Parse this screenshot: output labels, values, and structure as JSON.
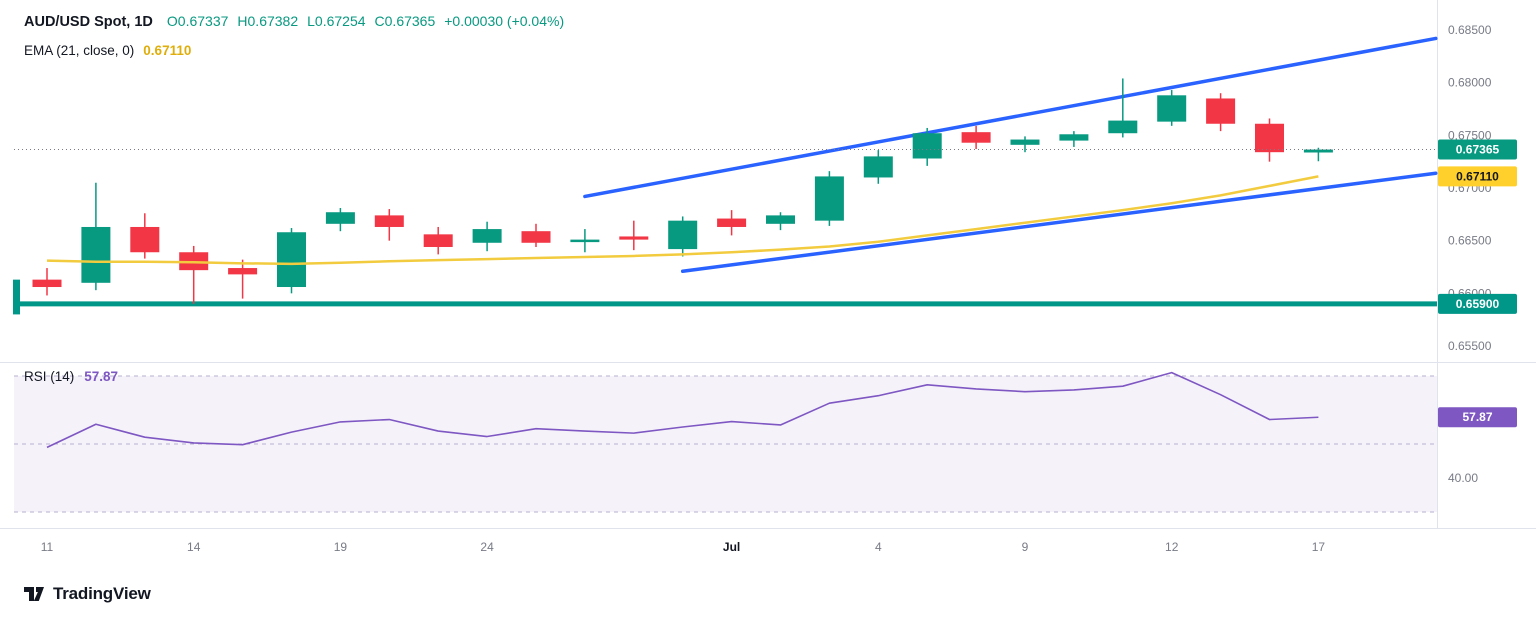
{
  "header": {
    "symbol_title": "AUD/USD Spot, 1D",
    "ohlc_segments": [
      "O0.67337",
      "H0.67382",
      "L0.67254",
      "C0.67365",
      "+0.00030 (+0.04%)"
    ],
    "ema": {
      "label": "EMA (21, close, 0)",
      "value": "0.67110"
    },
    "rsi": {
      "label": "RSI (14)",
      "value": "57.87"
    }
  },
  "footer": {
    "brand": "TradingView"
  },
  "colors": {
    "up": "#089981",
    "down": "#F23645",
    "ema": "#F2CC3E",
    "ema_badge_bg": "#FFD02C",
    "ema_badge_text": "#131722",
    "trendline": "#2962FF",
    "support": "#009688",
    "current_badge": "#089981",
    "rsi": "#7E57C2",
    "rsi_band_fill": "rgba(126,87,194,0.08)",
    "rsi_level": "#B7B0CE",
    "axis_text": "#787B86",
    "legend_text": "#131722",
    "divider": "#E0E3EB",
    "price_line": "#787B86"
  },
  "chart_data": [
    {
      "type": "candlestick",
      "title": "AUD/USD Spot, 1D",
      "ylim": [
        0.655,
        0.685
      ],
      "y_ticks": [
        {
          "value": 0.685,
          "label": "0.68500"
        },
        {
          "value": 0.68,
          "label": "0.68000"
        },
        {
          "value": 0.675,
          "label": "0.67500"
        },
        {
          "value": 0.67,
          "label": "0.67000"
        },
        {
          "value": 0.665,
          "label": "0.66500"
        },
        {
          "value": 0.66,
          "label": "0.66000"
        },
        {
          "value": 0.655,
          "label": "0.65500"
        }
      ],
      "x_ticks": [
        {
          "index": 0,
          "label": "11"
        },
        {
          "index": 3,
          "label": "14"
        },
        {
          "index": 6,
          "label": "19"
        },
        {
          "index": 9,
          "label": "24"
        },
        {
          "index": 14,
          "label": "Jul",
          "emphasis": true
        },
        {
          "index": 17,
          "label": "4"
        },
        {
          "index": 20,
          "label": "9"
        },
        {
          "index": 23,
          "label": "12"
        },
        {
          "index": 26,
          "label": "17"
        }
      ],
      "ohlc": [
        [
          0.6613,
          0.6624,
          0.6598,
          0.6606
        ],
        [
          0.661,
          0.6705,
          0.6603,
          0.6663
        ],
        [
          0.6663,
          0.6676,
          0.6633,
          0.6639
        ],
        [
          0.6639,
          0.6645,
          0.659,
          0.6622
        ],
        [
          0.6624,
          0.6632,
          0.6595,
          0.6618
        ],
        [
          0.6606,
          0.6662,
          0.66,
          0.6658
        ],
        [
          0.6666,
          0.6681,
          0.6659,
          0.6677
        ],
        [
          0.6674,
          0.668,
          0.665,
          0.6663
        ],
        [
          0.6656,
          0.6663,
          0.6637,
          0.6644
        ],
        [
          0.6648,
          0.6668,
          0.664,
          0.6661
        ],
        [
          0.6659,
          0.6666,
          0.6644,
          0.6648
        ],
        [
          0.6649,
          0.6661,
          0.6639,
          0.6651
        ],
        [
          0.6654,
          0.6669,
          0.6641,
          0.6651
        ],
        [
          0.6642,
          0.6673,
          0.6635,
          0.6669
        ],
        [
          0.6671,
          0.6679,
          0.6655,
          0.6663
        ],
        [
          0.6666,
          0.6677,
          0.666,
          0.6674
        ],
        [
          0.6669,
          0.6716,
          0.6664,
          0.6711
        ],
        [
          0.671,
          0.6736,
          0.6704,
          0.673
        ],
        [
          0.6728,
          0.6757,
          0.6721,
          0.6752
        ],
        [
          0.6753,
          0.6759,
          0.6737,
          0.6743
        ],
        [
          0.6741,
          0.6749,
          0.6734,
          0.6746
        ],
        [
          0.6745,
          0.6754,
          0.6739,
          0.6751
        ],
        [
          0.6752,
          0.6804,
          0.6748,
          0.6764
        ],
        [
          0.6763,
          0.6793,
          0.6759,
          0.6788
        ],
        [
          0.6785,
          0.679,
          0.6754,
          0.6761
        ],
        [
          0.6761,
          0.6766,
          0.6725,
          0.6734
        ],
        [
          0.67337,
          0.67382,
          0.67254,
          0.67365
        ]
      ],
      "series": [
        {
          "name": "EMA (21, close, 0)",
          "type": "line",
          "values": [
            0.6631,
            0.663,
            0.663,
            0.66295,
            0.66285,
            0.6628,
            0.6629,
            0.66305,
            0.66315,
            0.66325,
            0.66335,
            0.66345,
            0.66355,
            0.6637,
            0.6639,
            0.66415,
            0.66445,
            0.6649,
            0.6655,
            0.6661,
            0.6667,
            0.6673,
            0.6679,
            0.66855,
            0.6693,
            0.6702,
            0.6711
          ]
        }
      ],
      "annotations": {
        "trendlines": [
          {
            "name": "ascending-channel-upper",
            "from_index": 11,
            "from_price": 0.6692,
            "to_index": 28.4,
            "to_price": 0.6842
          },
          {
            "name": "ascending-channel-lower",
            "from_index": 13,
            "from_price": 0.6621,
            "to_index": 28.4,
            "to_price": 0.6714
          }
        ],
        "support_line": {
          "price": 0.659,
          "label": "0.65900",
          "anchor_top": 0.6613,
          "anchor_bottom": 0.658
        },
        "current_price": {
          "price": 0.67365,
          "label": "0.67365"
        },
        "ema_value": {
          "price": 0.6711,
          "label": "0.67110"
        }
      }
    },
    {
      "type": "line",
      "title": "RSI (14)",
      "current_value": 57.87,
      "current_label": "57.87",
      "band": {
        "from": 30,
        "to": 70
      },
      "levels": [
        {
          "value": 70,
          "style": "dashed"
        },
        {
          "value": 50,
          "style": "dashed"
        },
        {
          "value": 30,
          "style": "dashed"
        }
      ],
      "y_ticks": [
        {
          "value": 40,
          "label": "40.00"
        }
      ],
      "values": [
        49.0,
        55.8,
        52.0,
        50.3,
        49.8,
        53.5,
        56.5,
        57.2,
        53.8,
        52.2,
        54.5,
        53.8,
        53.2,
        55.0,
        56.6,
        55.6,
        62.0,
        64.2,
        67.4,
        66.2,
        65.4,
        65.9,
        67.0,
        71.0,
        64.5,
        57.2,
        57.87
      ]
    }
  ]
}
